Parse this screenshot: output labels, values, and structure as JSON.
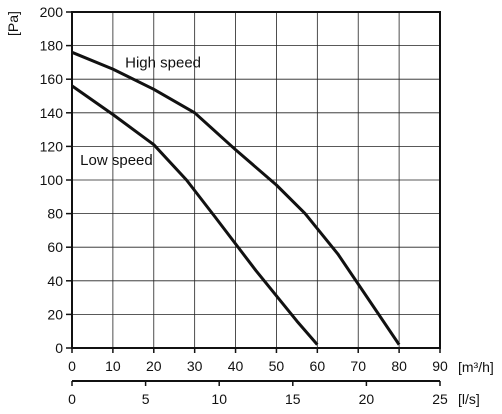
{
  "chart_data": {
    "type": "line",
    "ylabel": "[Pa]",
    "xlabel": "[m³/h]",
    "x2label": "[l/s]",
    "xlim": [
      0,
      90
    ],
    "ylim": [
      0,
      200
    ],
    "x2lim": [
      0,
      25
    ],
    "xticks": [
      0,
      10,
      20,
      30,
      40,
      50,
      60,
      70,
      80,
      90
    ],
    "yticks": [
      0,
      20,
      40,
      60,
      80,
      100,
      120,
      140,
      160,
      180,
      200
    ],
    "x2ticks": [
      0,
      5,
      10,
      15,
      20,
      25
    ],
    "grid": true,
    "series": [
      {
        "name": "High speed",
        "x": [
          0,
          10,
          20,
          30,
          40,
          50,
          57,
          65,
          75,
          80
        ],
        "y": [
          176,
          166,
          154,
          140,
          118,
          97,
          80,
          56,
          20,
          2
        ]
      },
      {
        "name": "Low speed",
        "x": [
          0,
          10,
          20,
          28,
          35,
          45,
          55,
          60
        ],
        "y": [
          156,
          139,
          121,
          100,
          78,
          46,
          16,
          2
        ]
      }
    ],
    "annotations": [
      {
        "text": "High speed",
        "x": 13,
        "y": 167
      },
      {
        "text": "Low speed",
        "x": 2,
        "y": 109
      }
    ]
  }
}
